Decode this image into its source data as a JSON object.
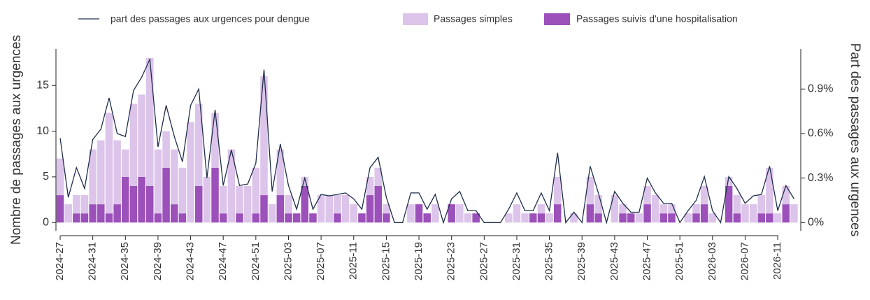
{
  "chart_data": {
    "type": "bar",
    "left_axis_label": "Nombre de passages aux urgences",
    "right_axis_label": "Part des passages aux urgences",
    "categories": [
      "2024-27",
      null,
      null,
      null,
      "2024-31",
      null,
      null,
      null,
      "2024-35",
      null,
      null,
      null,
      "2024-39",
      null,
      null,
      null,
      "2024-43",
      null,
      null,
      null,
      "2024-47",
      null,
      null,
      null,
      "2024-51",
      null,
      null,
      null,
      "2025-03",
      null,
      null,
      null,
      "2025-07",
      null,
      null,
      null,
      "2025-11",
      null,
      null,
      null,
      "2025-15",
      null,
      null,
      null,
      "2025-19",
      null,
      null,
      null,
      "2025-23",
      null,
      null,
      null,
      "2025-27",
      null,
      null,
      null,
      "2025-31",
      null,
      null,
      null,
      "2025-35",
      null,
      null,
      null,
      "2025-39",
      null,
      null,
      null,
      "2025-43",
      null,
      null,
      null,
      "2025-47",
      null,
      null,
      null,
      "2025-51",
      null,
      null,
      null,
      "2026-03",
      null,
      null,
      null,
      "2026-07",
      null,
      null,
      null,
      "2026-11",
      null,
      null
    ],
    "series": [
      {
        "name": "part des passages aux urgences pour dengue",
        "type": "line",
        "axis": "y2",
        "color": "#1f2d4a",
        "values": [
          0.57,
          0.17,
          0.37,
          0.23,
          0.56,
          0.63,
          0.84,
          0.6,
          0.58,
          0.89,
          0.98,
          1.1,
          0.51,
          0.79,
          0.58,
          0.41,
          0.79,
          0.9,
          0.3,
          0.76,
          0.25,
          0.49,
          0.25,
          0.26,
          0.4,
          1.03,
          0.21,
          0.53,
          0.25,
          0.09,
          0.3,
          0.09,
          0.19,
          0.18,
          0.19,
          0.2,
          0.16,
          0.09,
          0.37,
          0.44,
          0.17,
          0,
          0,
          0.2,
          0.2,
          0.09,
          0.19,
          0,
          0.16,
          0.21,
          0.08,
          0.08,
          0,
          0,
          0,
          0.09,
          0.2,
          0.08,
          0.08,
          0.2,
          0.08,
          0.47,
          0,
          0.07,
          0,
          0.38,
          0.2,
          0,
          0.21,
          0.13,
          0.07,
          0.07,
          0.3,
          0.2,
          0.13,
          0.13,
          0,
          0.08,
          0.15,
          0.31,
          0.08,
          0,
          0.31,
          0.23,
          0.13,
          0.18,
          0.19,
          0.38,
          0.08,
          0.25,
          0.16
        ]
      },
      {
        "name": "Passages simples",
        "type": "bar",
        "color": "#dcc4ea",
        "values": [
          4,
          2,
          2,
          2,
          6,
          7,
          11,
          7,
          3,
          9,
          9,
          14,
          7,
          4,
          6,
          5,
          11,
          9,
          5,
          6,
          3,
          8,
          3,
          4,
          5,
          13,
          2,
          5,
          2,
          0,
          1,
          0,
          3,
          3,
          2,
          3,
          2,
          0,
          2,
          2,
          1,
          0,
          0,
          2,
          0,
          0,
          2,
          0,
          0,
          2,
          1,
          0,
          0,
          0,
          0,
          1,
          2,
          1,
          0,
          1,
          1,
          3,
          0,
          1,
          0,
          3,
          2,
          0,
          3,
          1,
          0,
          1,
          2,
          3,
          1,
          1,
          0,
          1,
          1,
          2,
          1,
          0,
          1,
          2,
          2,
          2,
          2,
          5,
          1,
          2,
          2
        ]
      },
      {
        "name": "Passages suivis d'une hospitalisation",
        "type": "bar",
        "color": "#9b50ba",
        "values": [
          3,
          0,
          1,
          1,
          2,
          2,
          1,
          2,
          5,
          4,
          5,
          4,
          1,
          6,
          2,
          1,
          0,
          4,
          0,
          6,
          1,
          0,
          1,
          0,
          1,
          3,
          0,
          3,
          1,
          1,
          4,
          1,
          0,
          0,
          1,
          0,
          0,
          1,
          3,
          4,
          1,
          0,
          0,
          0,
          2,
          1,
          0,
          0,
          2,
          0,
          0,
          1,
          0,
          0,
          0,
          0,
          0,
          0,
          1,
          1,
          0,
          2,
          0,
          0,
          0,
          2,
          1,
          0,
          0,
          1,
          1,
          0,
          2,
          0,
          1,
          1,
          0,
          0,
          1,
          2,
          0,
          0,
          4,
          1,
          0,
          0,
          1,
          1,
          0,
          2,
          0
        ]
      }
    ],
    "ylim": [
      -0.9,
      19
    ],
    "yticks": [
      0,
      5,
      10,
      15
    ],
    "y2lim": [
      -0.055,
      1.17
    ],
    "y2ticks": [
      {
        "value": 0,
        "label": "0%"
      },
      {
        "value": 0.3,
        "label": "0.3%"
      },
      {
        "value": 0.6,
        "label": "0.6%"
      },
      {
        "value": 0.9,
        "label": "0.9%"
      }
    ]
  }
}
